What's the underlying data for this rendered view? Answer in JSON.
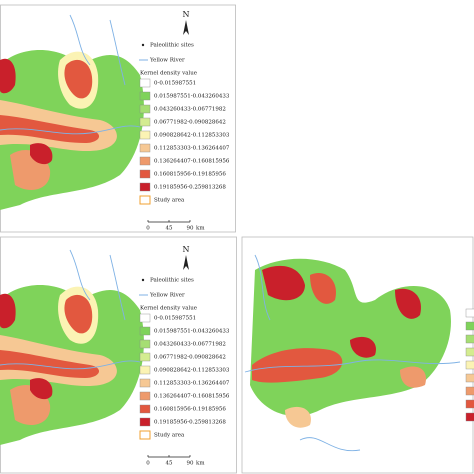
{
  "north": "N",
  "legend": {
    "sites": "Paleolithic sites",
    "river": "Yellow River",
    "title": "Kernel density value",
    "classes": [
      {
        "label": "0-0.015987551",
        "color": "#ffffff"
      },
      {
        "label": "0.015987551-0.043260433",
        "color": "#7fd35a"
      },
      {
        "label": "0.043260433-0.06771982",
        "color": "#a6de73"
      },
      {
        "label": "0.06771982-0.090828642",
        "color": "#d4ec90"
      },
      {
        "label": "0.090828642-0.112853303",
        "color": "#fbf3b4"
      },
      {
        "label": "0.112853303-0.136264407",
        "color": "#f6c894"
      },
      {
        "label": "0.136264407-0.160815956",
        "color": "#ee9a6c"
      },
      {
        "label": "0.160815956-0.19185956",
        "color": "#e2583f"
      },
      {
        "label": "0.19185956-0.259813268",
        "color": "#c9202b"
      }
    ],
    "study": "Study area"
  },
  "scale": {
    "ticks": [
      0,
      45,
      90
    ],
    "unit": "km"
  }
}
